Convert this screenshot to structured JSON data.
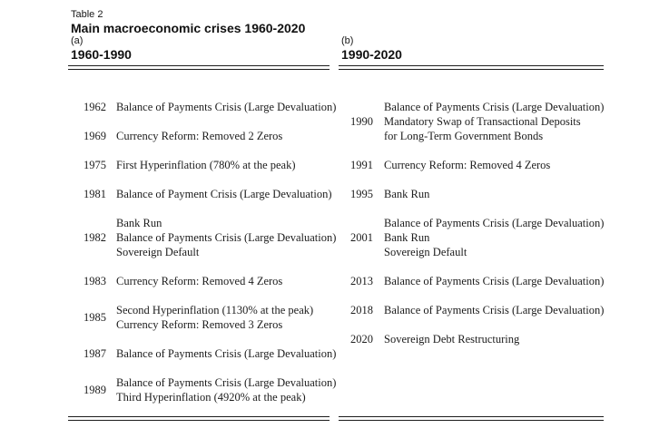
{
  "table": {
    "label": "Table 2",
    "title": "Main macroeconomic crises 1960-2020",
    "panels": [
      {
        "tag": "(a)",
        "range": "1960-1990",
        "rows": [
          {
            "year": "1962",
            "events": [
              "Balance of Payments Crisis (Large Devaluation)"
            ]
          },
          {
            "year": "1969",
            "events": [
              "Currency Reform: Removed 2 Zeros"
            ]
          },
          {
            "year": "1975",
            "events": [
              "First Hyperinflation (780% at the peak)"
            ]
          },
          {
            "year": "1981",
            "events": [
              "Balance of Payment Crisis (Large Devaluation)"
            ]
          },
          {
            "year": "1982",
            "events": [
              "Bank Run",
              "Balance of Payments Crisis (Large Devaluation)",
              "Sovereign Default"
            ]
          },
          {
            "year": "1983",
            "events": [
              "Currency Reform: Removed 4 Zeros"
            ]
          },
          {
            "year": "1985",
            "events": [
              "Second Hyperinflation (1130% at the peak)",
              "Currency Reform: Removed 3 Zeros"
            ]
          },
          {
            "year": "1987",
            "events": [
              "Balance of Payments Crisis (Large Devaluation)"
            ]
          },
          {
            "year": "1989",
            "events": [
              "Balance of Payments Crisis (Large Devaluation)",
              "Third Hyperinflation (4920% at the peak)"
            ]
          }
        ]
      },
      {
        "tag": "(b)",
        "range": "1990-2020",
        "rows": [
          {
            "year": "1990",
            "events": [
              "Balance of Payments Crisis (Large Devaluation)",
              "Mandatory Swap of Transactional Deposits",
              "for Long-Term Government Bonds"
            ]
          },
          {
            "year": "1991",
            "events": [
              "Currency Reform: Removed 4 Zeros"
            ]
          },
          {
            "year": "1995",
            "events": [
              "Bank Run"
            ]
          },
          {
            "year": "2001",
            "events": [
              "Balance of Payments Crisis (Large Devaluation)",
              "Bank Run",
              "Sovereign Default"
            ]
          },
          {
            "year": "2013",
            "events": [
              "Balance of Payments Crisis (Large Devaluation)"
            ]
          },
          {
            "year": "2018",
            "events": [
              "Balance of Payments Crisis (Large Devaluation)"
            ]
          },
          {
            "year": "2020",
            "events": [
              "Sovereign Debt Restructuring"
            ]
          }
        ]
      }
    ]
  }
}
